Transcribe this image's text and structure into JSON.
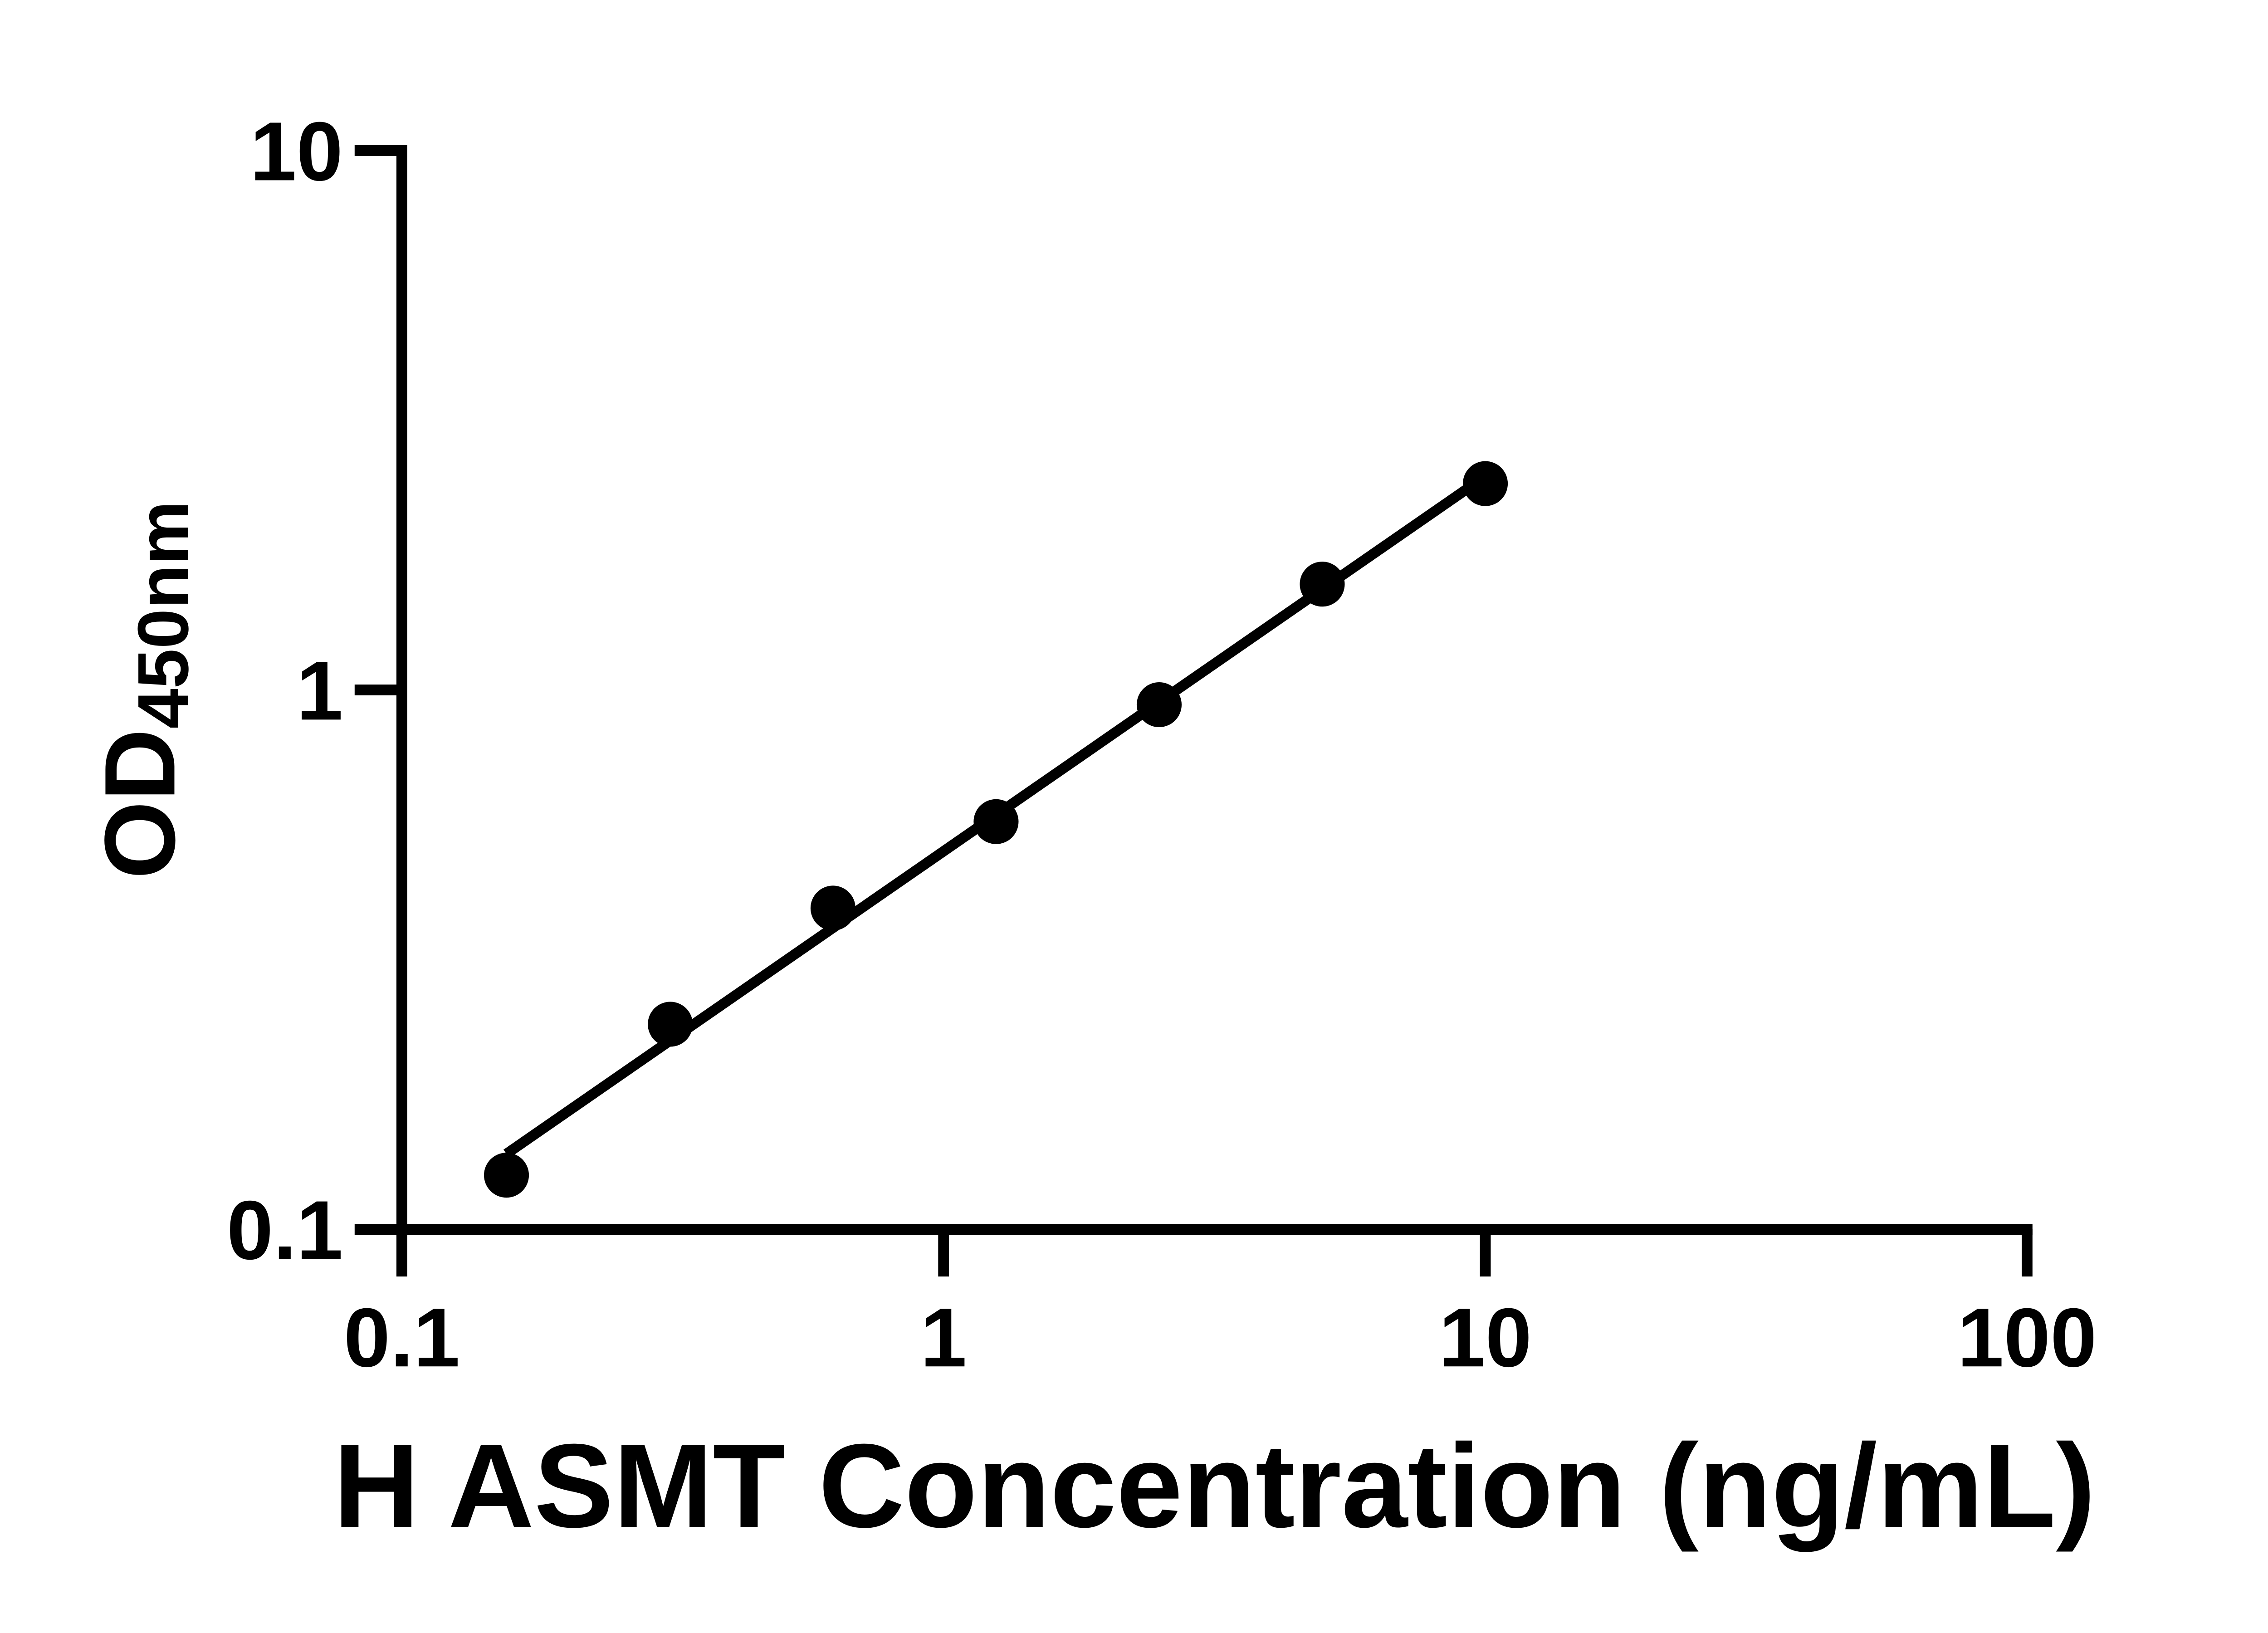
{
  "page": {
    "background": "#ffffff",
    "foreground": "#000000"
  },
  "chart_data": {
    "type": "scatter",
    "title": "",
    "xlabel": "H ASMT Concentration (ng/mL)",
    "ylabel": "OD450nm",
    "ylabel_main": "OD",
    "ylabel_sub": "450nm",
    "x_scale": "log",
    "y_scale": "log",
    "xlim": [
      0.1,
      100
    ],
    "ylim": [
      0.1,
      10
    ],
    "x_ticks": [
      {
        "v": 0.1,
        "label": "0.1"
      },
      {
        "v": 1,
        "label": "1"
      },
      {
        "v": 10,
        "label": "10"
      },
      {
        "v": 100,
        "label": "100"
      }
    ],
    "y_ticks": [
      {
        "v": 0.1,
        "label": "0.1"
      },
      {
        "v": 1,
        "label": "1"
      },
      {
        "v": 10,
        "label": "10"
      }
    ],
    "series": [
      {
        "marker": "circle",
        "color": "#000000",
        "points": [
          {
            "x": 0.156,
            "y": 0.126
          },
          {
            "x": 0.313,
            "y": 0.24
          },
          {
            "x": 0.625,
            "y": 0.394
          },
          {
            "x": 1.25,
            "y": 0.57
          },
          {
            "x": 2.5,
            "y": 0.939
          },
          {
            "x": 5,
            "y": 1.571
          },
          {
            "x": 10,
            "y": 2.413
          }
        ]
      }
    ],
    "trend_line": {
      "x1": 0.156,
      "y1": 0.138,
      "x2": 10,
      "y2": 2.49,
      "color": "#000000"
    },
    "grid": false,
    "legend": false,
    "axis_color": "#000000"
  }
}
